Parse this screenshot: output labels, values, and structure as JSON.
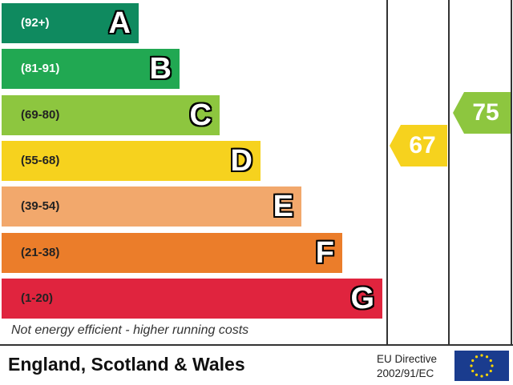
{
  "chart_data": {
    "type": "bar",
    "bands": [
      {
        "range": "(92+)",
        "letter": "A",
        "color": "#0f8a5f",
        "text_color": "#ffffff"
      },
      {
        "range": "(81-91)",
        "letter": "B",
        "color": "#21a852",
        "text_color": "#ffffff"
      },
      {
        "range": "(69-80)",
        "letter": "C",
        "color": "#8dc63f",
        "text_color": "#222222"
      },
      {
        "range": "(55-68)",
        "letter": "D",
        "color": "#f6d21e",
        "text_color": "#222222"
      },
      {
        "range": "(39-54)",
        "letter": "E",
        "color": "#f2a86c",
        "text_color": "#222222"
      },
      {
        "range": "(21-38)",
        "letter": "F",
        "color": "#eb7d2a",
        "text_color": "#222222"
      },
      {
        "range": "(1-20)",
        "letter": "G",
        "color": "#e0243e",
        "text_color": "#222222"
      }
    ],
    "current": {
      "value": 67,
      "band": "D",
      "color": "#f6d21e"
    },
    "potential": {
      "value": 75,
      "band": "C",
      "color": "#8dc63f"
    },
    "footnote": "Not energy efficient - higher running costs"
  },
  "footer": {
    "region": "England, Scotland & Wales",
    "directive_line1": "EU Directive",
    "directive_line2": "2002/91/EC"
  }
}
